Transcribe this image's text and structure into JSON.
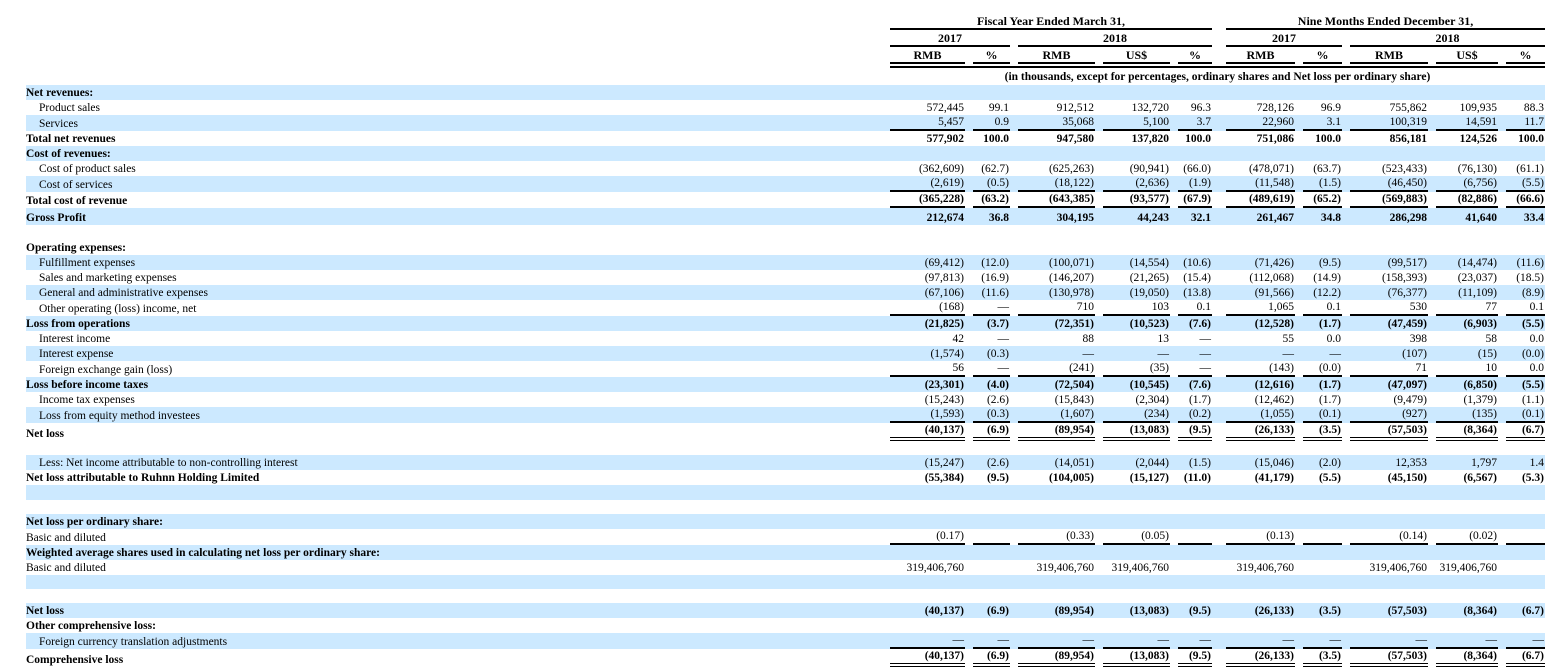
{
  "colors": {
    "row_highlight": "#CCE9FF",
    "rule": "#000000",
    "text": "#000000",
    "background": "#FFFFFF"
  },
  "header": {
    "groups": [
      {
        "label": "Fiscal Year Ended March 31,"
      },
      {
        "label": "Nine Months Ended December 31,"
      }
    ],
    "years": [
      "2017",
      "2018",
      "2017",
      "2018"
    ],
    "columns": [
      "RMB",
      "%",
      "RMB",
      "US$",
      "%",
      "RMB",
      "%",
      "RMB",
      "US$",
      "%"
    ],
    "note": "(in thousands, except for percentages, ordinary shares and Net loss per ordinary share)"
  },
  "table": {
    "rows": [
      {
        "type": "section",
        "label": "Net revenues:",
        "bold": true,
        "indent": false,
        "bg": "blue",
        "underline": "none"
      },
      {
        "type": "data",
        "label": "Product sales",
        "bold": false,
        "indent": true,
        "bg": "white",
        "underline": "none",
        "values": [
          "572,445",
          "99.1",
          "912,512",
          "132,720",
          "96.3",
          "728,126",
          "96.9",
          "755,862",
          "109,935",
          "88.3"
        ]
      },
      {
        "type": "data",
        "label": "Services",
        "bold": false,
        "indent": true,
        "bg": "blue",
        "underline": "single",
        "values": [
          "5,457",
          "0.9",
          "35,068",
          "5,100",
          "3.7",
          "22,960",
          "3.1",
          "100,319",
          "14,591",
          "11.7"
        ]
      },
      {
        "type": "data",
        "label": "Total net revenues",
        "bold": true,
        "indent": false,
        "bg": "white",
        "underline": "none",
        "values": [
          "577,902",
          "100.0",
          "947,580",
          "137,820",
          "100.0",
          "751,086",
          "100.0",
          "856,181",
          "124,526",
          "100.0"
        ]
      },
      {
        "type": "section",
        "label": "Cost of revenues:",
        "bold": true,
        "indent": false,
        "bg": "blue",
        "underline": "none"
      },
      {
        "type": "data",
        "label": "Cost of product sales",
        "bold": false,
        "indent": true,
        "bg": "white",
        "underline": "none",
        "values": [
          "(362,609)",
          "(62.7)",
          "(625,263)",
          "(90,941)",
          "(66.0)",
          "(478,071)",
          "(63.7)",
          "(523,433)",
          "(76,130)",
          "(61.1)"
        ]
      },
      {
        "type": "data",
        "label": "Cost of services",
        "bold": false,
        "indent": true,
        "bg": "blue",
        "underline": "single",
        "values": [
          "(2,619)",
          "(0.5)",
          "(18,122)",
          "(2,636)",
          "(1.9)",
          "(11,548)",
          "(1.5)",
          "(46,450)",
          "(6,756)",
          "(5.5)"
        ]
      },
      {
        "type": "data",
        "label": "Total cost of revenue",
        "bold": true,
        "indent": false,
        "bg": "white",
        "underline": "single",
        "values": [
          "(365,228)",
          "(63.2)",
          "(643,385)",
          "(93,577)",
          "(67.9)",
          "(489,619)",
          "(65.2)",
          "(569,883)",
          "(82,886)",
          "(66.6)"
        ]
      },
      {
        "type": "data",
        "label": "Gross Profit",
        "bold": true,
        "indent": false,
        "bg": "blue",
        "underline": "none",
        "height": 17,
        "values": [
          "212,674",
          "36.8",
          "304,195",
          "44,243",
          "32.1",
          "261,467",
          "34.8",
          "286,298",
          "41,640",
          "33.4"
        ]
      },
      {
        "type": "blank",
        "bg": "white",
        "height": 15
      },
      {
        "type": "section",
        "label": "Operating expenses:",
        "bold": true,
        "indent": false,
        "bg": "white",
        "underline": "none"
      },
      {
        "type": "data",
        "label": "Fulfillment expenses",
        "bold": false,
        "indent": true,
        "bg": "blue",
        "underline": "none",
        "values": [
          "(69,412)",
          "(12.0)",
          "(100,071)",
          "(14,554)",
          "(10.6)",
          "(71,426)",
          "(9.5)",
          "(99,517)",
          "(14,474)",
          "(11.6)"
        ]
      },
      {
        "type": "data",
        "label": "Sales and marketing expenses",
        "bold": false,
        "indent": true,
        "bg": "white",
        "underline": "none",
        "values": [
          "(97,813)",
          "(16.9)",
          "(146,207)",
          "(21,265)",
          "(15.4)",
          "(112,068)",
          "(14.9)",
          "(158,393)",
          "(23,037)",
          "(18.5)"
        ]
      },
      {
        "type": "data",
        "label": "General and administrative expenses",
        "bold": false,
        "indent": true,
        "bg": "blue",
        "underline": "none",
        "values": [
          "(67,106)",
          "(11.6)",
          "(130,978)",
          "(19,050)",
          "(13.8)",
          "(91,566)",
          "(12.2)",
          "(76,377)",
          "(11,109)",
          "(8.9)"
        ]
      },
      {
        "type": "data",
        "label": "Other operating (loss) income, net",
        "bold": false,
        "indent": true,
        "bg": "white",
        "underline": "single",
        "values": [
          "(168)",
          "—",
          "710",
          "103",
          "0.1",
          "1,065",
          "0.1",
          "530",
          "77",
          "0.1"
        ]
      },
      {
        "type": "data",
        "label": "Loss from operations",
        "bold": true,
        "indent": false,
        "bg": "blue",
        "underline": "none",
        "values": [
          "(21,825)",
          "(3.7)",
          "(72,351)",
          "(10,523)",
          "(7.6)",
          "(12,528)",
          "(1.7)",
          "(47,459)",
          "(6,903)",
          "(5.5)"
        ]
      },
      {
        "type": "data",
        "label": "Interest income",
        "bold": false,
        "indent": true,
        "bg": "white",
        "underline": "none",
        "values": [
          "42",
          "—",
          "88",
          "13",
          "—",
          "55",
          "0.0",
          "398",
          "58",
          "0.0"
        ]
      },
      {
        "type": "data",
        "label": "Interest expense",
        "bold": false,
        "indent": true,
        "bg": "blue",
        "underline": "none",
        "values": [
          "(1,574)",
          "(0.3)",
          "—",
          "—",
          "—",
          "—",
          "—",
          "(107)",
          "(15)",
          "(0.0)"
        ]
      },
      {
        "type": "data",
        "label": "Foreign exchange gain (loss)",
        "bold": false,
        "indent": true,
        "bg": "white",
        "underline": "single",
        "values": [
          "56",
          "—",
          "(241)",
          "(35)",
          "—",
          "(143)",
          "(0.0)",
          "71",
          "10",
          "0.0"
        ]
      },
      {
        "type": "data",
        "label": "Loss before income taxes",
        "bold": true,
        "indent": false,
        "bg": "blue",
        "underline": "none",
        "values": [
          "(23,301)",
          "(4.0)",
          "(72,504)",
          "(10,545)",
          "(7.6)",
          "(12,616)",
          "(1.7)",
          "(47,097)",
          "(6,850)",
          "(5.5)"
        ]
      },
      {
        "type": "data",
        "label": "Income tax expenses",
        "bold": false,
        "indent": true,
        "bg": "white",
        "underline": "none",
        "values": [
          "(15,243)",
          "(2.6)",
          "(15,843)",
          "(2,304)",
          "(1.7)",
          "(12,462)",
          "(1.7)",
          "(9,479)",
          "(1,379)",
          "(1.1)"
        ]
      },
      {
        "type": "data",
        "label": "Loss from equity method investees",
        "bold": false,
        "indent": true,
        "bg": "blue",
        "underline": "single",
        "values": [
          "(1,593)",
          "(0.3)",
          "(1,607)",
          "(234)",
          "(0.2)",
          "(1,055)",
          "(0.1)",
          "(927)",
          "(135)",
          "(0.1)"
        ]
      },
      {
        "type": "data",
        "label": "Net loss",
        "bold": true,
        "indent": false,
        "bg": "white",
        "underline": "double",
        "height": 17,
        "values": [
          "(40,137)",
          "(6.9)",
          "(89,954)",
          "(13,083)",
          "(9.5)",
          "(26,133)",
          "(3.5)",
          "(57,503)",
          "(8,364)",
          "(6.7)"
        ]
      },
      {
        "type": "blank",
        "bg": "white",
        "height": 8
      },
      {
        "type": "data",
        "label": "Less: Net income attributable to non-controlling interest",
        "bold": false,
        "indent": true,
        "bg": "blue",
        "underline": "none",
        "values": [
          "(15,247)",
          "(2.6)",
          "(14,051)",
          "(2,044)",
          "(1.5)",
          "(15,046)",
          "(2.0)",
          "12,353",
          "1,797",
          "1.4"
        ]
      },
      {
        "type": "data",
        "label": "Net loss attributable to Ruhnn Holding Limited",
        "bold": true,
        "indent": false,
        "bg": "white",
        "underline": "none",
        "values": [
          "(55,384)",
          "(9.5)",
          "(104,005)",
          "(15,127)",
          "(11.0)",
          "(41,179)",
          "(5.5)",
          "(45,150)",
          "(6,567)",
          "(5.3)"
        ]
      },
      {
        "type": "blank",
        "bg": "blue",
        "height": 15
      },
      {
        "type": "blank",
        "bg": "white",
        "height": 8
      },
      {
        "type": "section",
        "label": "Net loss per ordinary share:",
        "bold": true,
        "indent": false,
        "bg": "blue",
        "underline": "none"
      },
      {
        "type": "data",
        "label": "Basic and diluted",
        "bold": false,
        "indent": false,
        "bg": "white",
        "underline": "single",
        "values": [
          "(0.17)",
          "",
          "(0.33)",
          "(0.05)",
          "",
          "(0.13)",
          "",
          "(0.14)",
          "(0.02)",
          ""
        ]
      },
      {
        "type": "section",
        "label": "Weighted average shares used in calculating net loss per ordinary share:",
        "bold": true,
        "indent": false,
        "bg": "blue",
        "underline": "none"
      },
      {
        "type": "data",
        "label": "Basic and diluted",
        "bold": false,
        "indent": false,
        "bg": "white",
        "underline": "none",
        "values": [
          "319,406,760",
          "",
          "319,406,760",
          "319,406,760",
          "",
          "319,406,760",
          "",
          "319,406,760",
          "319,406,760",
          ""
        ]
      },
      {
        "type": "blank",
        "bg": "blue",
        "height": 14
      },
      {
        "type": "blank",
        "bg": "white",
        "height": 7
      },
      {
        "type": "data",
        "label": "Net loss",
        "bold": true,
        "indent": false,
        "bg": "blue",
        "underline": "none",
        "values": [
          "(40,137)",
          "(6.9)",
          "(89,954)",
          "(13,083)",
          "(9.5)",
          "(26,133)",
          "(3.5)",
          "(57,503)",
          "(8,364)",
          "(6.7)"
        ]
      },
      {
        "type": "section",
        "label": "Other comprehensive loss:",
        "bold": true,
        "indent": false,
        "bg": "white",
        "underline": "none"
      },
      {
        "type": "data",
        "label": "Foreign currency translation adjustments",
        "bold": false,
        "indent": true,
        "bg": "blue",
        "underline": "single",
        "values": [
          "—",
          "—",
          "—",
          "—",
          "—",
          "—",
          "—",
          "—",
          "—",
          "—"
        ]
      },
      {
        "type": "data",
        "label": "Comprehensive loss",
        "bold": true,
        "indent": false,
        "bg": "white",
        "underline": "double",
        "height": 18,
        "values": [
          "(40,137)",
          "(6.9)",
          "(89,954)",
          "(13,083)",
          "(9.5)",
          "(26,133)",
          "(3.5)",
          "(57,503)",
          "(8,364)",
          "(6.7)"
        ]
      }
    ]
  }
}
